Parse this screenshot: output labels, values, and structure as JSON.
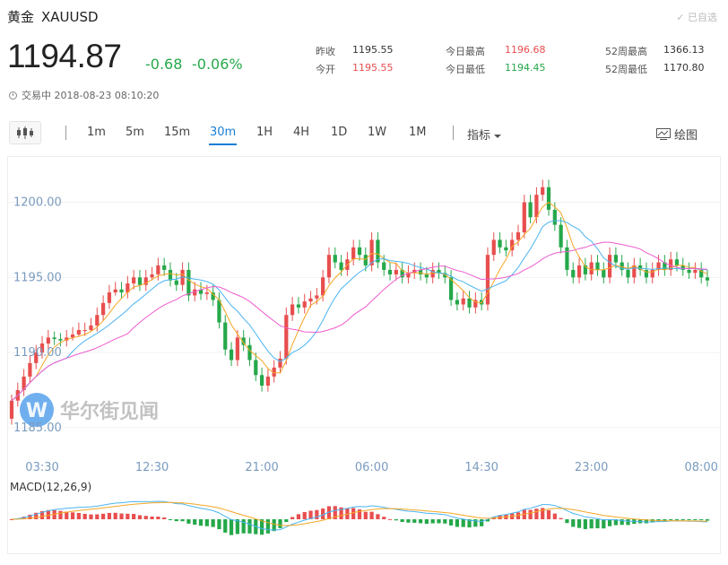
{
  "header": {
    "name": "黄金",
    "symbol": "XAUUSD",
    "favorite": "已自选",
    "price": "1194.87",
    "change": "-0.68",
    "change_pct": "-0.06%",
    "status": "交易中 2018-08-23 08:10:20"
  },
  "stats": [
    {
      "label": "昨收",
      "value": "1195.55",
      "color": "#333333"
    },
    {
      "label": "今开",
      "value": "1195.55",
      "color": "#e84e4e"
    },
    {
      "label": "今日最高",
      "value": "1196.68",
      "color": "#e84e4e"
    },
    {
      "label": "今日最低",
      "value": "1194.45",
      "color": "#25a84a"
    },
    {
      "label": "52周最高",
      "value": "1366.13",
      "color": "#333333"
    },
    {
      "label": "52周最低",
      "value": "1170.80",
      "color": "#333333"
    }
  ],
  "toolbar": {
    "periods": [
      "1m",
      "5m",
      "15m",
      "30m",
      "1H",
      "4H",
      "1D",
      "1W",
      "1M"
    ],
    "active": "30m",
    "indicator": "指标",
    "draw": "绘图"
  },
  "watermark": "华尔街见闻",
  "colors": {
    "up": "#e84e4e",
    "down": "#25a84a",
    "accent": "#1a7fd6",
    "ma5": "#f5a623",
    "ma10": "#4ab4f0",
    "ma20": "#ee5ccf"
  },
  "chart_data": {
    "type": "candlestick",
    "y_ticks": [
      "1200.00",
      "1195.00",
      "1190.00",
      "1185.00"
    ],
    "ylim": [
      1183.8,
      1202.3
    ],
    "x_ticks": [
      {
        "index": 5,
        "label": "03:30"
      },
      {
        "index": 23,
        "label": "12:30"
      },
      {
        "index": 41,
        "label": "21:00"
      },
      {
        "index": 59,
        "label": "06:00"
      },
      {
        "index": 77,
        "label": "14:30"
      },
      {
        "index": 95,
        "label": "23:00"
      },
      {
        "index": 113,
        "label": "08:00"
      }
    ],
    "candles": [
      [
        1185.6,
        1186.8,
        1187.2,
        1185.2
      ],
      [
        1186.8,
        1187.5,
        1188.0,
        1186.4
      ],
      [
        1187.5,
        1188.4,
        1188.9,
        1187.1
      ],
      [
        1188.4,
        1189.3,
        1189.8,
        1188.0
      ],
      [
        1189.3,
        1190.0,
        1190.5,
        1188.9
      ],
      [
        1190.0,
        1190.6,
        1191.1,
        1189.6
      ],
      [
        1190.6,
        1191.0,
        1191.5,
        1190.2
      ],
      [
        1191.0,
        1190.9,
        1191.4,
        1190.5
      ],
      [
        1190.9,
        1190.8,
        1191.3,
        1190.4
      ],
      [
        1190.8,
        1191.0,
        1191.5,
        1190.4
      ],
      [
        1191.0,
        1191.2,
        1191.7,
        1190.8
      ],
      [
        1191.2,
        1191.5,
        1192.0,
        1191.1
      ],
      [
        1191.5,
        1191.5,
        1192.0,
        1191.1
      ],
      [
        1191.5,
        1191.8,
        1192.3,
        1191.4
      ],
      [
        1191.8,
        1192.5,
        1193.0,
        1191.4
      ],
      [
        1192.5,
        1193.3,
        1193.8,
        1192.1
      ],
      [
        1193.3,
        1194.0,
        1194.5,
        1192.9
      ],
      [
        1194.0,
        1194.2,
        1194.7,
        1193.8
      ],
      [
        1194.2,
        1194.0,
        1194.7,
        1193.6
      ],
      [
        1194.0,
        1194.6,
        1195.1,
        1193.6
      ],
      [
        1194.6,
        1195.0,
        1195.5,
        1194.2
      ],
      [
        1195.0,
        1194.5,
        1195.5,
        1194.1
      ],
      [
        1194.5,
        1195.0,
        1195.5,
        1194.1
      ],
      [
        1195.0,
        1195.2,
        1195.7,
        1194.8
      ],
      [
        1195.2,
        1195.8,
        1196.3,
        1194.8
      ],
      [
        1195.8,
        1195.5,
        1196.3,
        1195.1
      ],
      [
        1195.5,
        1194.8,
        1196.0,
        1194.4
      ],
      [
        1194.8,
        1194.5,
        1195.3,
        1194.1
      ],
      [
        1194.5,
        1195.5,
        1196.0,
        1194.1
      ],
      [
        1195.5,
        1193.8,
        1196.0,
        1193.4
      ],
      [
        1193.8,
        1194.2,
        1194.7,
        1193.4
      ],
      [
        1194.2,
        1193.9,
        1194.7,
        1193.5
      ],
      [
        1193.9,
        1194.0,
        1194.5,
        1193.5
      ],
      [
        1194.0,
        1193.5,
        1194.5,
        1193.1
      ],
      [
        1193.5,
        1192.0,
        1194.0,
        1191.6
      ],
      [
        1192.0,
        1190.2,
        1192.5,
        1189.8
      ],
      [
        1190.2,
        1189.5,
        1190.7,
        1189.1
      ],
      [
        1189.5,
        1191.0,
        1191.5,
        1189.1
      ],
      [
        1191.0,
        1190.5,
        1191.5,
        1190.1
      ],
      [
        1190.5,
        1189.5,
        1191.0,
        1189.1
      ],
      [
        1189.5,
        1188.5,
        1190.0,
        1188.1
      ],
      [
        1188.5,
        1187.8,
        1189.0,
        1187.4
      ],
      [
        1187.8,
        1188.4,
        1188.9,
        1187.4
      ],
      [
        1188.4,
        1189.0,
        1189.5,
        1188.0
      ],
      [
        1189.0,
        1189.6,
        1190.1,
        1188.6
      ],
      [
        1189.6,
        1192.5,
        1193.0,
        1189.2
      ],
      [
        1192.5,
        1193.2,
        1193.7,
        1192.1
      ],
      [
        1193.2,
        1193.0,
        1193.7,
        1192.6
      ],
      [
        1193.0,
        1193.4,
        1193.9,
        1192.6
      ],
      [
        1193.4,
        1193.6,
        1194.1,
        1193.0
      ],
      [
        1193.6,
        1193.8,
        1194.3,
        1193.2
      ],
      [
        1193.8,
        1195.0,
        1195.5,
        1193.4
      ],
      [
        1195.0,
        1196.5,
        1197.0,
        1194.6
      ],
      [
        1196.5,
        1196.0,
        1197.0,
        1195.6
      ],
      [
        1196.0,
        1195.5,
        1196.5,
        1195.1
      ],
      [
        1195.5,
        1196.2,
        1196.7,
        1195.1
      ],
      [
        1196.2,
        1197.0,
        1197.5,
        1195.8
      ],
      [
        1197.0,
        1196.5,
        1197.5,
        1196.1
      ],
      [
        1196.5,
        1195.8,
        1197.0,
        1195.4
      ],
      [
        1195.8,
        1197.5,
        1198.0,
        1195.4
      ],
      [
        1197.5,
        1196.0,
        1198.0,
        1195.6
      ],
      [
        1196.0,
        1195.5,
        1196.5,
        1195.1
      ],
      [
        1195.5,
        1195.2,
        1196.0,
        1194.8
      ],
      [
        1195.2,
        1195.5,
        1196.0,
        1194.8
      ],
      [
        1195.5,
        1195.0,
        1196.0,
        1194.6
      ],
      [
        1195.0,
        1195.3,
        1195.8,
        1194.6
      ],
      [
        1195.3,
        1195.5,
        1196.0,
        1194.9
      ],
      [
        1195.5,
        1195.2,
        1196.0,
        1194.8
      ],
      [
        1195.2,
        1195.0,
        1195.7,
        1194.6
      ],
      [
        1195.0,
        1195.5,
        1196.0,
        1194.6
      ],
      [
        1195.5,
        1195.3,
        1196.0,
        1194.9
      ],
      [
        1195.3,
        1195.0,
        1195.8,
        1194.6
      ],
      [
        1195.0,
        1193.5,
        1195.5,
        1193.1
      ],
      [
        1193.5,
        1193.2,
        1194.0,
        1192.8
      ],
      [
        1193.2,
        1193.6,
        1194.1,
        1192.8
      ],
      [
        1193.6,
        1193.0,
        1194.1,
        1192.6
      ],
      [
        1193.0,
        1193.5,
        1194.0,
        1192.6
      ],
      [
        1193.5,
        1193.2,
        1194.0,
        1192.8
      ],
      [
        1193.2,
        1196.5,
        1197.0,
        1192.8
      ],
      [
        1196.5,
        1197.5,
        1198.0,
        1196.1
      ],
      [
        1197.5,
        1197.0,
        1198.0,
        1196.6
      ],
      [
        1197.0,
        1196.8,
        1197.5,
        1196.4
      ],
      [
        1196.8,
        1197.5,
        1198.0,
        1196.4
      ],
      [
        1197.5,
        1198.0,
        1198.5,
        1197.1
      ],
      [
        1198.0,
        1200.0,
        1200.5,
        1197.6
      ],
      [
        1200.0,
        1199.0,
        1200.5,
        1198.6
      ],
      [
        1199.0,
        1200.5,
        1201.0,
        1198.6
      ],
      [
        1200.5,
        1201.0,
        1201.5,
        1200.1
      ],
      [
        1201.0,
        1199.5,
        1201.5,
        1199.1
      ],
      [
        1199.5,
        1198.5,
        1200.0,
        1198.1
      ],
      [
        1198.5,
        1197.0,
        1199.0,
        1196.6
      ],
      [
        1197.0,
        1195.5,
        1197.5,
        1195.1
      ],
      [
        1195.5,
        1195.0,
        1196.0,
        1194.6
      ],
      [
        1195.0,
        1195.8,
        1196.3,
        1194.6
      ],
      [
        1195.8,
        1195.2,
        1196.3,
        1194.8
      ],
      [
        1195.2,
        1196.0,
        1196.5,
        1194.8
      ],
      [
        1196.0,
        1195.5,
        1196.5,
        1195.1
      ],
      [
        1195.5,
        1195.0,
        1196.0,
        1194.6
      ],
      [
        1195.0,
        1196.5,
        1197.0,
        1194.6
      ],
      [
        1196.5,
        1196.0,
        1197.0,
        1195.6
      ],
      [
        1196.0,
        1195.5,
        1196.5,
        1195.1
      ],
      [
        1195.5,
        1195.0,
        1196.0,
        1194.6
      ],
      [
        1195.0,
        1195.8,
        1196.3,
        1194.6
      ],
      [
        1195.8,
        1195.5,
        1196.3,
        1195.1
      ],
      [
        1195.5,
        1195.0,
        1196.0,
        1194.6
      ],
      [
        1195.0,
        1195.5,
        1196.0,
        1194.6
      ],
      [
        1195.5,
        1196.0,
        1196.5,
        1195.1
      ],
      [
        1196.0,
        1195.5,
        1196.5,
        1195.1
      ],
      [
        1195.5,
        1196.2,
        1196.7,
        1195.1
      ],
      [
        1196.2,
        1195.8,
        1196.7,
        1195.4
      ],
      [
        1195.8,
        1195.5,
        1196.3,
        1195.1
      ],
      [
        1195.5,
        1195.3,
        1196.0,
        1194.9
      ],
      [
        1195.3,
        1195.5,
        1196.0,
        1194.9
      ],
      [
        1195.5,
        1195.0,
        1196.0,
        1194.6
      ],
      [
        1195.0,
        1194.8,
        1195.5,
        1194.4
      ]
    ],
    "macd_label": "MACD(12,26,9)"
  }
}
